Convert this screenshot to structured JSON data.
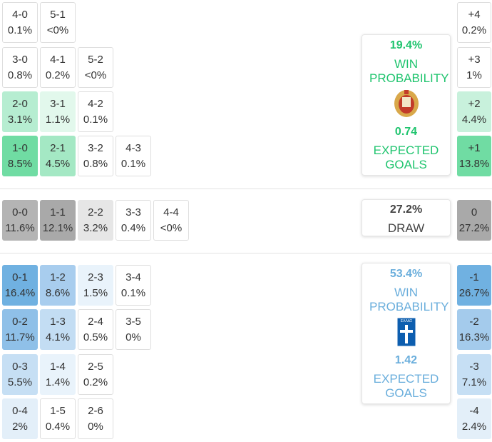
{
  "home_grid": [
    [
      {
        "score": "4-0",
        "prob": "0.1%",
        "color": "#ffffff"
      },
      {
        "score": "5-1",
        "prob": "<0%",
        "color": "#ffffff"
      }
    ],
    [
      {
        "score": "3-0",
        "prob": "0.8%",
        "color": "#ffffff"
      },
      {
        "score": "4-1",
        "prob": "0.2%",
        "color": "#ffffff"
      },
      {
        "score": "5-2",
        "prob": "<0%",
        "color": "#ffffff"
      }
    ],
    [
      {
        "score": "2-0",
        "prob": "3.1%",
        "color": "#b6edd1"
      },
      {
        "score": "3-1",
        "prob": "1.1%",
        "color": "#e2f8ec"
      },
      {
        "score": "4-2",
        "prob": "0.1%",
        "color": "#ffffff"
      }
    ],
    [
      {
        "score": "1-0",
        "prob": "8.5%",
        "color": "#70dca3"
      },
      {
        "score": "2-1",
        "prob": "4.5%",
        "color": "#a4e8c4"
      },
      {
        "score": "3-2",
        "prob": "0.8%",
        "color": "#ffffff"
      },
      {
        "score": "4-3",
        "prob": "0.1%",
        "color": "#ffffff"
      }
    ]
  ],
  "draw_row": [
    {
      "score": "0-0",
      "prob": "11.6%",
      "color": "#b4b4b4"
    },
    {
      "score": "1-1",
      "prob": "12.1%",
      "color": "#a9a9a9"
    },
    {
      "score": "2-2",
      "prob": "3.2%",
      "color": "#e6e6e6"
    },
    {
      "score": "3-3",
      "prob": "0.4%",
      "color": "#ffffff"
    },
    {
      "score": "4-4",
      "prob": "<0%",
      "color": "#ffffff"
    }
  ],
  "away_grid": [
    [
      {
        "score": "0-1",
        "prob": "16.4%",
        "color": "#70b1e1"
      },
      {
        "score": "1-2",
        "prob": "8.6%",
        "color": "#a8cdee"
      },
      {
        "score": "2-3",
        "prob": "1.5%",
        "color": "#e9f3fb"
      },
      {
        "score": "3-4",
        "prob": "0.1%",
        "color": "#ffffff"
      }
    ],
    [
      {
        "score": "0-2",
        "prob": "11.7%",
        "color": "#8fc0e8"
      },
      {
        "score": "1-3",
        "prob": "4.1%",
        "color": "#c3ddf3"
      },
      {
        "score": "2-4",
        "prob": "0.5%",
        "color": "#ffffff"
      },
      {
        "score": "3-5",
        "prob": "0%",
        "color": "#ffffff"
      }
    ],
    [
      {
        "score": "0-3",
        "prob": "5.5%",
        "color": "#c6dff4"
      },
      {
        "score": "1-4",
        "prob": "1.4%",
        "color": "#e9f3fb"
      },
      {
        "score": "2-5",
        "prob": "0.2%",
        "color": "#ffffff"
      }
    ],
    [
      {
        "score": "0-4",
        "prob": "2%",
        "color": "#e3eff9"
      },
      {
        "score": "1-5",
        "prob": "0.4%",
        "color": "#ffffff"
      },
      {
        "score": "2-6",
        "prob": "0%",
        "color": "#ffffff"
      }
    ]
  ],
  "margins": [
    {
      "label": "+4",
      "prob": "0.2%",
      "color": "#ffffff"
    },
    {
      "label": "+3",
      "prob": "1%",
      "color": "#ffffff"
    },
    {
      "label": "+2",
      "prob": "4.4%",
      "color": "#c8f1dc"
    },
    {
      "label": "+1",
      "prob": "13.8%",
      "color": "#70dca3"
    },
    {
      "label": "0",
      "prob": "27.2%",
      "color": "#a9a9a9"
    },
    {
      "label": "-1",
      "prob": "26.7%",
      "color": "#70b1e1"
    },
    {
      "label": "-2",
      "prob": "16.3%",
      "color": "#a4cbec"
    },
    {
      "label": "-3",
      "prob": "7.1%",
      "color": "#c6dff4"
    },
    {
      "label": "-4",
      "prob": "2.4%",
      "color": "#e3eff9"
    }
  ],
  "home_card": {
    "win_prob": "19.4%",
    "win_label": "WIN PROBABILITY",
    "xg": "0.74",
    "xg_label": "EXPECTED GOALS"
  },
  "draw_card": {
    "prob": "27.2%",
    "label": "DRAW"
  },
  "away_card": {
    "win_prob": "53.4%",
    "win_label": "WIN PROBABILITY",
    "flag_text": "ΕΛΛΑΣ",
    "xg": "1.42",
    "xg_label": "EXPECTED GOALS"
  }
}
